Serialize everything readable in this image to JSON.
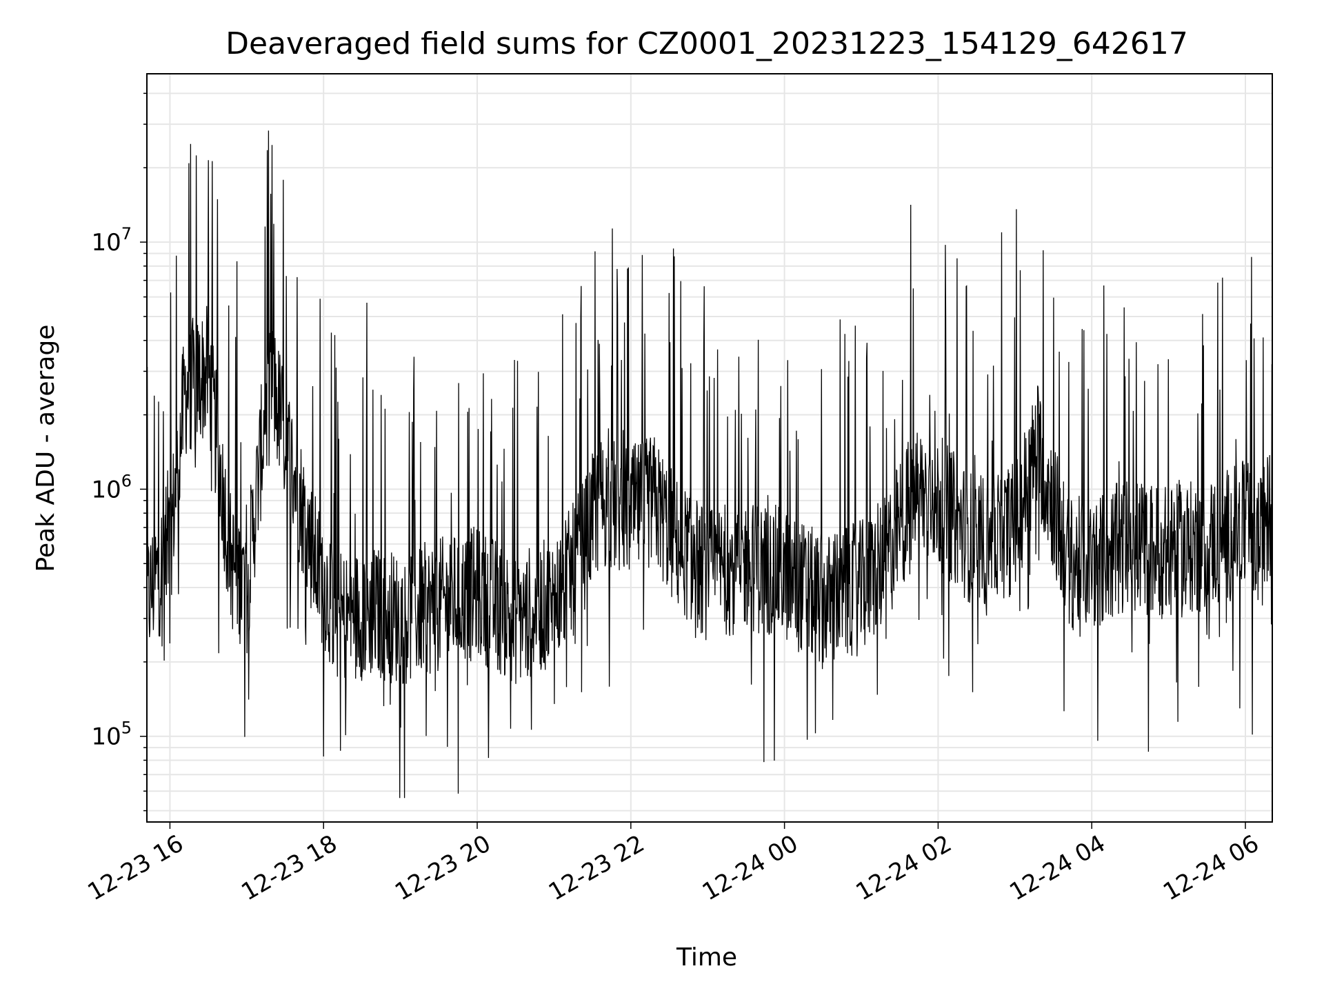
{
  "chart_data": {
    "type": "line",
    "title": "Deaveraged field sums for CZ0001_20231223_154129_642617",
    "xlabel": "Time",
    "ylabel": "Peak ADU - average",
    "yscale": "log",
    "ylim": [
      45000,
      48000000
    ],
    "grid": true,
    "line_color": "#000000",
    "grid_color": "#e6e6e6",
    "x_ticks": [
      "12-23 16",
      "12-23 18",
      "12-23 20",
      "12-23 22",
      "12-24 00",
      "12-24 02",
      "12-24 04",
      "12-24 06"
    ],
    "x_range_hours": [
      15.7,
      30.35
    ],
    "y_ticks": [
      {
        "base": "10",
        "exp": "5",
        "value": 100000
      },
      {
        "base": "10",
        "exp": "6",
        "value": 1000000
      },
      {
        "base": "10",
        "exp": "7",
        "value": 10000000
      }
    ],
    "series": [
      {
        "x_hours": [
          15.7,
          16.0,
          16.2,
          16.5,
          16.8,
          17.0,
          17.3,
          17.6,
          17.9,
          18.2,
          18.6,
          19.0,
          19.5,
          20.0,
          20.5,
          21.0,
          21.3,
          21.6,
          22.0,
          22.3,
          22.6,
          23.0,
          23.5,
          24.0,
          24.5,
          25.0,
          25.3,
          25.7,
          26.0,
          26.5,
          27.0,
          27.3,
          27.7,
          28.0,
          28.5,
          29.0,
          29.5,
          30.0,
          30.2,
          30.35
        ],
        "values": [
          350000,
          600000,
          2500000,
          3000000,
          500000,
          400000,
          3000000,
          1200000,
          500000,
          300000,
          320000,
          300000,
          340000,
          380000,
          300000,
          350000,
          500000,
          900000,
          800000,
          900000,
          600000,
          450000,
          500000,
          450000,
          350000,
          400000,
          500000,
          1000000,
          900000,
          600000,
          700000,
          1500000,
          500000,
          500000,
          600000,
          550000,
          600000,
          700000,
          600000,
          900000
        ]
      }
    ]
  }
}
